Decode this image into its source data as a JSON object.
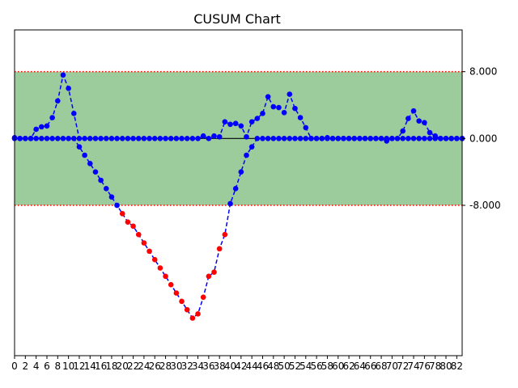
{
  "chart_data": {
    "type": "line",
    "title": "CUSUM Chart",
    "xlabel": "",
    "ylabel": "",
    "xlim": [
      0,
      83
    ],
    "ylim": [
      -26,
      13
    ],
    "yaxis_side": "right",
    "ytick_values": [
      8,
      0,
      -8
    ],
    "ytick_labels": [
      "8.000",
      "0.000",
      "-8.000"
    ],
    "xtick_labels": [
      "0",
      "2",
      "4",
      "6",
      "8",
      "10",
      "12",
      "14",
      "16",
      "18",
      "20",
      "22",
      "24",
      "26",
      "28",
      "30",
      "32",
      "34",
      "36",
      "38",
      "40",
      "42",
      "44",
      "46",
      "48",
      "50",
      "52",
      "54",
      "56",
      "58",
      "60",
      "62",
      "64",
      "66",
      "68",
      "70",
      "72",
      "74",
      "76",
      "78",
      "80",
      "82"
    ],
    "control_limits": {
      "upper": 8,
      "lower": -8,
      "color": "#ff0000",
      "style": "dotted"
    },
    "in_control_band_color": "#9ccc9c",
    "center_line": {
      "value": 0,
      "color": "#000000"
    },
    "in_control_marker_color": "#0000ff",
    "out_of_control_marker_color": "#ff0000",
    "series": [
      {
        "values": [
          0.1,
          0,
          0,
          0,
          1.1,
          1.4,
          1.5,
          2.5,
          4.5,
          7.6,
          6.0,
          3.0,
          0,
          0,
          0,
          0,
          0,
          0,
          0,
          0,
          0,
          0,
          0,
          0,
          0,
          0,
          0,
          0,
          0,
          0,
          0,
          0,
          0,
          0,
          0,
          0.3,
          0,
          0.3,
          0.2,
          2.0,
          1.7,
          1.8,
          1.5,
          0.2,
          2.0,
          2.4,
          3.0,
          5.0,
          3.8,
          3.7,
          3.1,
          5.3,
          3.6,
          2.5,
          1.3,
          0,
          0,
          0,
          0.1,
          0,
          0,
          0,
          0,
          0,
          0,
          0,
          0,
          0,
          0,
          -0.3,
          0,
          0,
          0.9,
          2.4,
          3.3,
          2.1,
          1.9,
          0.7,
          0.3,
          0,
          0,
          0,
          0,
          0
        ]
      },
      {
        "values": [
          0,
          0,
          0,
          0,
          0,
          0,
          0,
          0,
          0,
          0,
          0,
          0,
          -1.0,
          -2.0,
          -3.0,
          -4.0,
          -5.0,
          -6.0,
          -7.0,
          -8.0,
          -9.0,
          -10.0,
          -10.5,
          -11.5,
          -12.5,
          -13.5,
          -14.5,
          -15.5,
          -16.5,
          -17.5,
          -18.5,
          -19.5,
          -20.5,
          -21.5,
          -21.0,
          -19.0,
          -16.5,
          -16.0,
          -13.2,
          -11.5,
          -7.8,
          -6.0,
          -4.0,
          -2.0,
          -1.0,
          0,
          0,
          0,
          0,
          0,
          0,
          0,
          0,
          0,
          0,
          0,
          0,
          0,
          0,
          0,
          0,
          0,
          0,
          0,
          0,
          0,
          0,
          0,
          0,
          0,
          0,
          0,
          0,
          0,
          0,
          0,
          0,
          0,
          0,
          0,
          0,
          0,
          0,
          0
        ]
      }
    ]
  }
}
